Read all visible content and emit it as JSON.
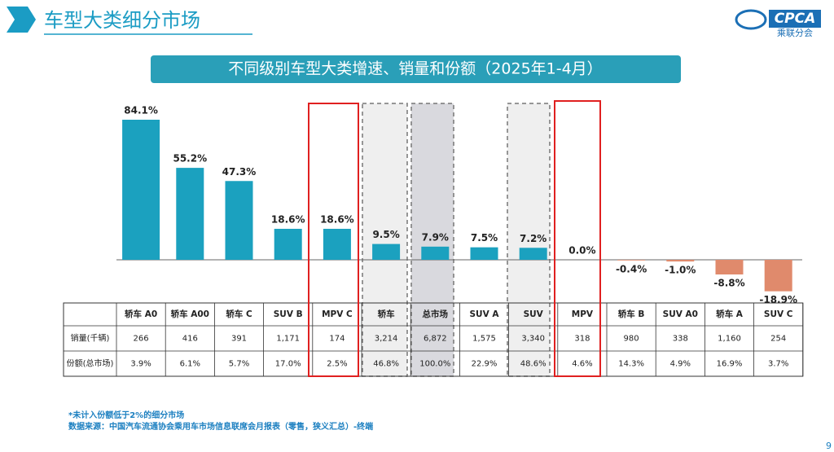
{
  "header": {
    "title": "车型大类细分市场",
    "logo": "CPCA",
    "logo_sub": "乘联分会"
  },
  "chart_data": {
    "type": "bar",
    "title": "不同级别车型大类增速、销量和份额（2025年1-4月）",
    "categories": [
      "轿车 A0",
      "轿车 A00",
      "轿车 C",
      "SUV B",
      "MPV C",
      "轿车",
      "总市场",
      "SUV A",
      "SUV",
      "MPV",
      "轿车 B",
      "SUV A0",
      "轿车 A",
      "SUV C"
    ],
    "values": [
      84.1,
      55.2,
      47.3,
      18.6,
      18.6,
      9.5,
      7.9,
      7.5,
      7.2,
      0.0,
      -0.4,
      -1.0,
      -8.8,
      -18.9
    ],
    "value_labels": [
      "84.1%",
      "55.2%",
      "47.3%",
      "18.6%",
      "18.6%",
      "9.5%",
      "7.9%",
      "7.5%",
      "7.2%",
      "0.0%",
      "-0.4%",
      "-1.0%",
      "-8.8%",
      "-18.9%"
    ],
    "color": "#1ba1bf",
    "negative_color": "#e08a6c"
  },
  "table": {
    "rows": [
      {
        "label": "销量(千辆)",
        "values": [
          "266",
          "416",
          "391",
          "1,171",
          "174",
          "3,214",
          "6,872",
          "1,575",
          "3,340",
          "318",
          "980",
          "338",
          "1,160",
          "254"
        ]
      },
      {
        "label": "份额(总市场)",
        "values": [
          "3.9%",
          "6.1%",
          "5.7%",
          "17.0%",
          "2.5%",
          "46.8%",
          "100.0%",
          "22.9%",
          "48.6%",
          "4.6%",
          "14.3%",
          "4.9%",
          "16.9%",
          "3.7%"
        ]
      }
    ]
  },
  "notes": [
    "*未计入份额低于2%的细分市场",
    "数据来源：中国汽车流通协会乘用车市场信息联席会月报表（零售，狭义汇总）-终端"
  ],
  "page": "9"
}
